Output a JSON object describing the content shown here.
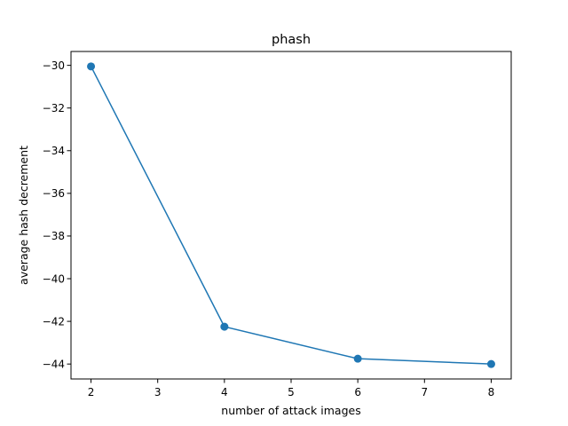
{
  "chart_data": {
    "type": "line",
    "title": "phash",
    "xlabel": "number of attack images",
    "ylabel": "average hash decrement",
    "x": [
      2,
      4,
      6,
      8
    ],
    "series": [
      {
        "values": [
          -30.05,
          -42.25,
          -43.75,
          -44.0
        ],
        "color": "#1f77b4"
      }
    ],
    "xlim": [
      1.7,
      8.3
    ],
    "ylim": [
      -44.7,
      -29.35
    ],
    "xticks": [
      2,
      3,
      4,
      5,
      6,
      7,
      8
    ],
    "yticks": [
      -30,
      -32,
      -34,
      -36,
      -38,
      -40,
      -42,
      -44
    ],
    "xtick_labels": [
      "2",
      "3",
      "4",
      "5",
      "6",
      "7",
      "8"
    ],
    "ytick_labels": [
      "−30",
      "−32",
      "−34",
      "−36",
      "−38",
      "−40",
      "−42",
      "−44"
    ],
    "grid": false,
    "marker": "circle"
  }
}
